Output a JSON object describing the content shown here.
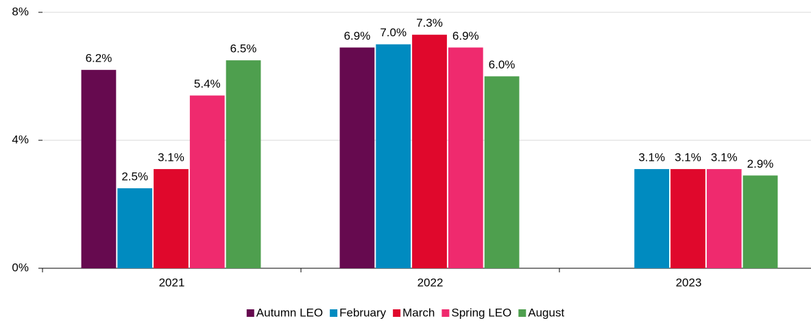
{
  "chart_data": {
    "type": "bar",
    "categories": [
      "2021",
      "2022",
      "2023"
    ],
    "series": [
      {
        "name": "Autumn LEO",
        "color": "#660a4f",
        "values": [
          6.2,
          6.9,
          null
        ],
        "value_labels": [
          "6.2%",
          "6.9%",
          null
        ]
      },
      {
        "name": "February",
        "color": "#008bc0",
        "values": [
          2.5,
          7.0,
          3.1
        ],
        "value_labels": [
          "2.5%",
          "7.0%",
          "3.1%"
        ]
      },
      {
        "name": "March",
        "color": "#e0082c",
        "values": [
          3.1,
          7.3,
          3.1
        ],
        "value_labels": [
          "3.1%",
          "7.3%",
          "3.1%"
        ]
      },
      {
        "name": "Spring LEO",
        "color": "#ef2a6e",
        "values": [
          5.4,
          6.9,
          3.1
        ],
        "value_labels": [
          "5.4%",
          "6.9%",
          "3.1%"
        ]
      },
      {
        "name": "August",
        "color": "#4e9f4e",
        "values": [
          6.5,
          6.0,
          2.9
        ],
        "value_labels": [
          "6.5%",
          "6.0%",
          "2.9%"
        ]
      }
    ],
    "ylim": [
      0,
      8
    ],
    "yticks": [
      {
        "value": 0,
        "label": "0%"
      },
      {
        "value": 4,
        "label": "4%"
      },
      {
        "value": 8,
        "label": "8%"
      }
    ],
    "grid": true,
    "legend": "bottom"
  }
}
